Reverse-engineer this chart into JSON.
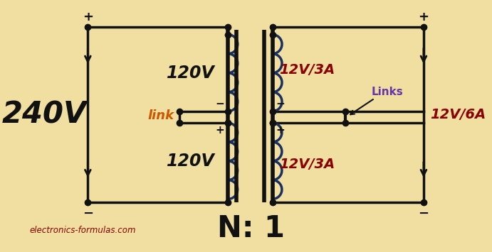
{
  "background_color": "#f0dfa0",
  "label_240v": "240V",
  "label_120v_top": "120V",
  "label_120v_bot": "120V",
  "label_12v3a_top": "12V/3A",
  "label_12v3a_bot": "12V/3A",
  "label_12v6a": "12V/6A",
  "label_link": "link",
  "label_links": "Links",
  "label_n1": "N: 1",
  "label_website": "electronics-formulas.com",
  "color_dark": "#111111",
  "color_coil": "#1a3060",
  "color_red": "#8b0000",
  "color_purple": "#6633aa",
  "color_orange": "#cc5500",
  "lw_circuit": 2.5,
  "lw_coil": 2.5,
  "lw_core": 4.0
}
